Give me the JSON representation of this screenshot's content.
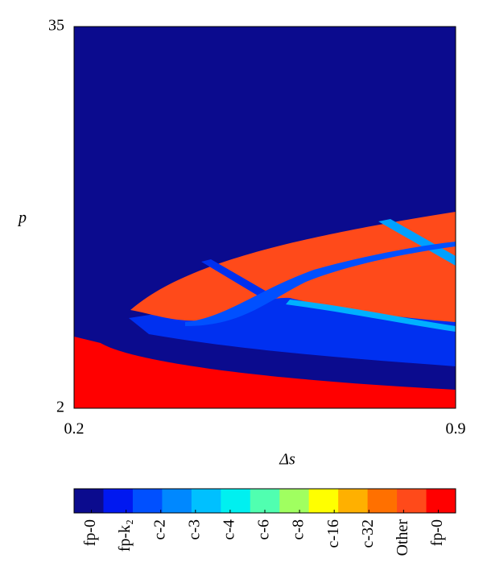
{
  "chart_data": {
    "type": "region-map",
    "x_label": "Δs",
    "y_label": "p",
    "xlim": [
      0.2,
      0.9
    ],
    "ylim": [
      2,
      35
    ],
    "xticks": [
      0.2,
      0.9
    ],
    "yticks": [
      2,
      35
    ],
    "colorbar": {
      "labels": [
        "fp-0",
        "fp-k₂",
        "c-2",
        "c-3",
        "c-4",
        "c-6",
        "c-8",
        "c-16",
        "c-32",
        "Other",
        "fp-0"
      ],
      "colors": [
        "#0b0b8e",
        "#0018f0",
        "#0050ff",
        "#0088ff",
        "#00c0ff",
        "#00f0f0",
        "#50ffb0",
        "#a0ff60",
        "#ffff00",
        "#ffb000",
        "#ff7000",
        "#ff4a1a",
        "#ff0000"
      ]
    }
  }
}
